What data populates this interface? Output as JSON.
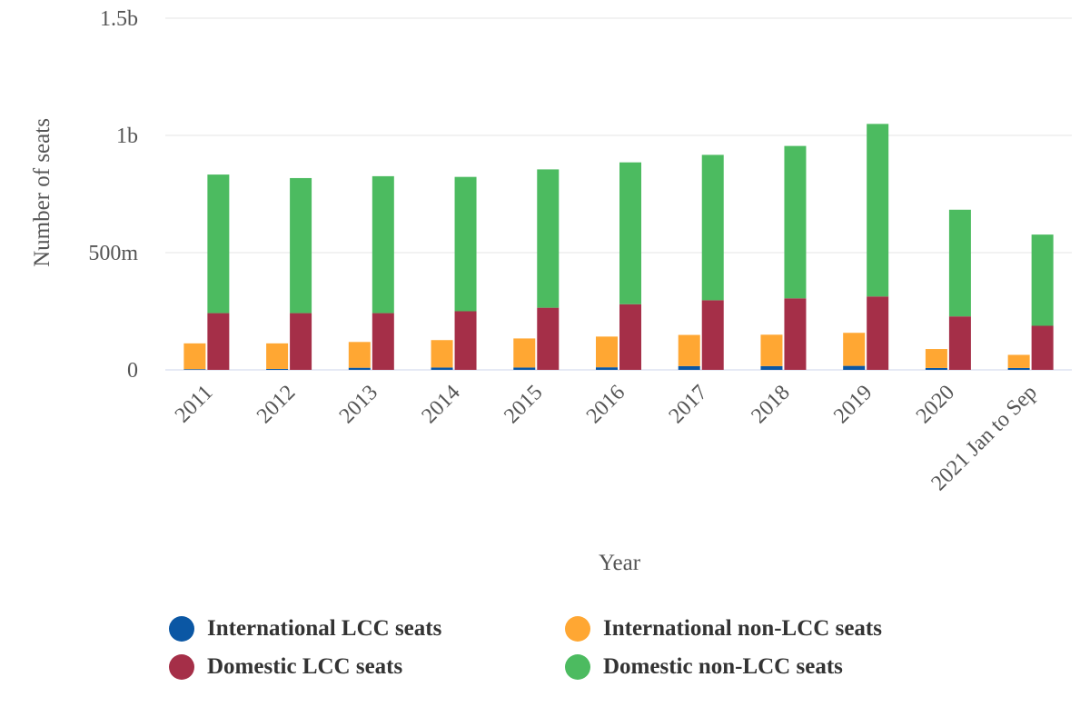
{
  "chart_data": {
    "type": "bar",
    "stacking": "grouped-stacked",
    "categories": [
      "2011",
      "2012",
      "2013",
      "2014",
      "2015",
      "2016",
      "2017",
      "2018",
      "2019",
      "2020",
      "2021 Jan to Sep"
    ],
    "ylim": [
      0,
      1500000000
    ],
    "yticks": [
      {
        "value": 0,
        "label": "0"
      },
      {
        "value": 500000000,
        "label": "500m"
      },
      {
        "value": 1000000000,
        "label": "1b"
      },
      {
        "value": 1500000000,
        "label": "1.5b"
      }
    ],
    "xlabel": "Year",
    "ylabel": "Number of seats",
    "grid": true,
    "legend_position": "bottom",
    "series": [
      {
        "name": "International LCC seats",
        "stack": "international",
        "color": "#0b57a4",
        "values": [
          3000000,
          4000000,
          9000000,
          10000000,
          10000000,
          11000000,
          16000000,
          16000000,
          17000000,
          8000000,
          8000000
        ]
      },
      {
        "name": "International non-LCC seats",
        "stack": "international",
        "color": "#ffa733",
        "values": [
          110000000,
          109000000,
          110000000,
          117000000,
          124000000,
          131000000,
          133000000,
          134000000,
          141000000,
          81000000,
          56000000
        ]
      },
      {
        "name": "Domestic LCC seats",
        "stack": "domestic",
        "color": "#a52f48",
        "values": [
          242000000,
          242000000,
          242000000,
          250000000,
          265000000,
          280000000,
          297000000,
          305000000,
          313000000,
          228000000,
          188000000
        ]
      },
      {
        "name": "Domestic non-LCC seats",
        "stack": "domestic",
        "color": "#4cbb60",
        "values": [
          591000000,
          576000000,
          584000000,
          573000000,
          590000000,
          605000000,
          620000000,
          650000000,
          736000000,
          455000000,
          389000000
        ]
      }
    ]
  }
}
